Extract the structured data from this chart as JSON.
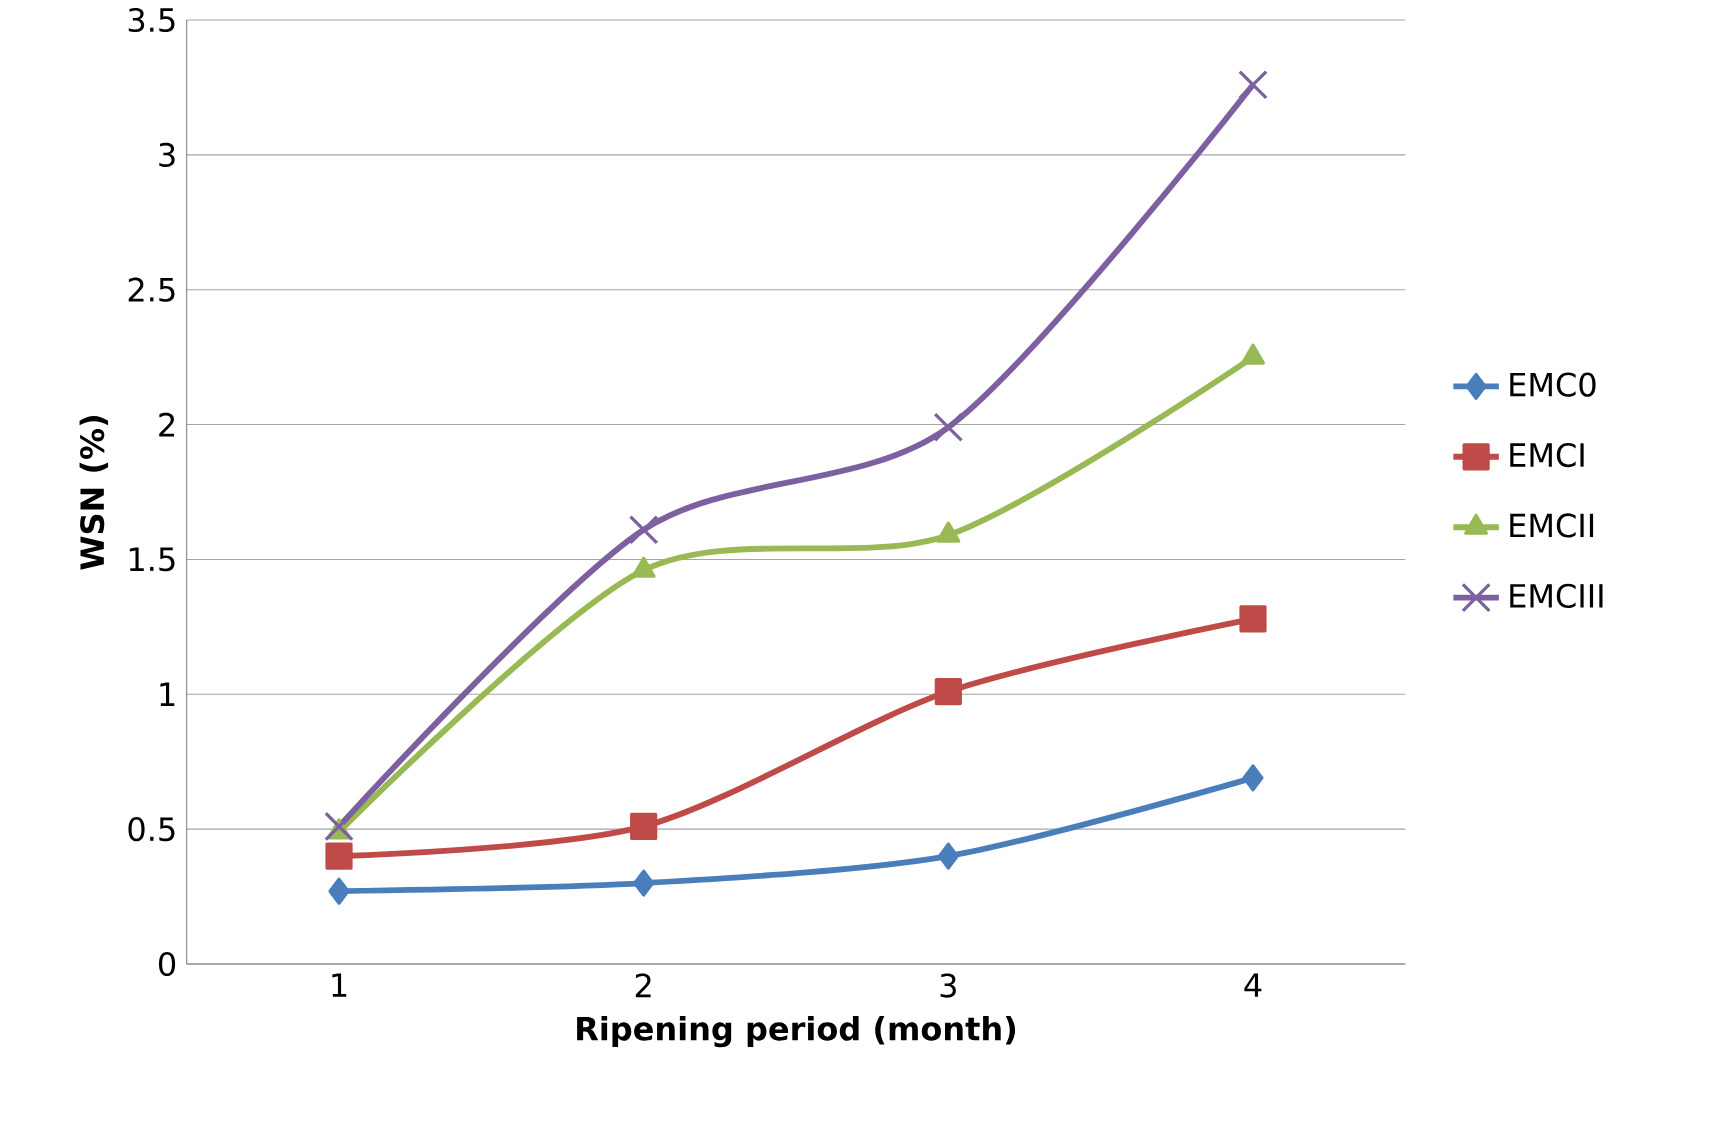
{
  "chart_data": {
    "type": "line",
    "xlabel": "Ripening period (month)",
    "ylabel": "WSN (%)",
    "categories": [
      "1",
      "2",
      "3",
      "4"
    ],
    "ylim": [
      0,
      3.5
    ],
    "yticks": [
      0,
      0.5,
      1,
      1.5,
      2,
      2.5,
      3,
      3.5
    ],
    "grid": "y",
    "legend": "right",
    "line_style": "solid",
    "series": [
      {
        "name": "EMC0",
        "color": "#4a7ebb",
        "marker": "diamond",
        "values": [
          0.27,
          0.3,
          0.4,
          0.69
        ]
      },
      {
        "name": "EMCI",
        "color": "#be4b48",
        "marker": "square",
        "values": [
          0.4,
          0.51,
          1.01,
          1.28
        ]
      },
      {
        "name": "EMCII",
        "color": "#98b954",
        "marker": "triangle",
        "values": [
          0.49,
          1.46,
          1.59,
          2.25
        ]
      },
      {
        "name": "EMCIII",
        "color": "#7d60a0",
        "marker": "cross",
        "values": [
          0.51,
          1.61,
          1.99,
          3.26
        ]
      }
    ]
  }
}
